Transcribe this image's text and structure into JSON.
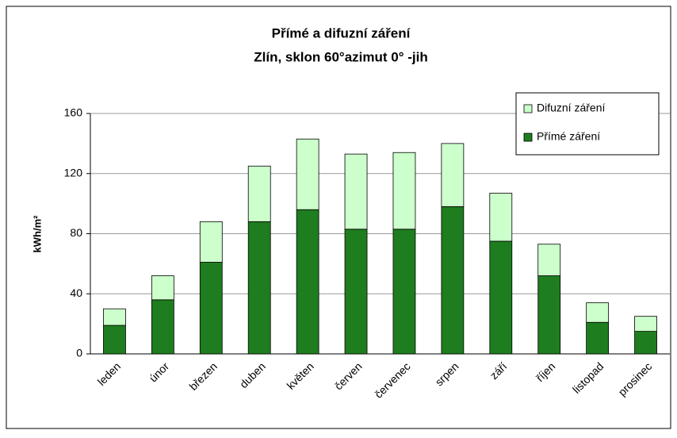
{
  "chart_data": {
    "type": "stacked_bar",
    "title": [
      "Přímé a difuzní záření",
      "Zlín, sklon 60°azimut 0° -jih"
    ],
    "y_label": "kWh/m²",
    "categories": [
      "leden",
      "únor",
      "březen",
      "duben",
      "květen",
      "červen",
      "červenec",
      "srpen",
      "září",
      "říjen",
      "listopad",
      "prosinec"
    ],
    "series": [
      {
        "name": "Přímé záření",
        "color": "#1e7d1e",
        "values": [
          19,
          36,
          61,
          88,
          96,
          83,
          83,
          98,
          75,
          52,
          21,
          15
        ]
      },
      {
        "name": "Difuzní záření",
        "color": "#ccffcc",
        "values": [
          11,
          16,
          27,
          37,
          47,
          50,
          51,
          42,
          32,
          21,
          13,
          10
        ]
      }
    ],
    "ylim": [
      0,
      160
    ],
    "yticks": [
      0,
      40,
      80,
      120,
      160
    ],
    "grid": true,
    "legend": "upper right"
  }
}
